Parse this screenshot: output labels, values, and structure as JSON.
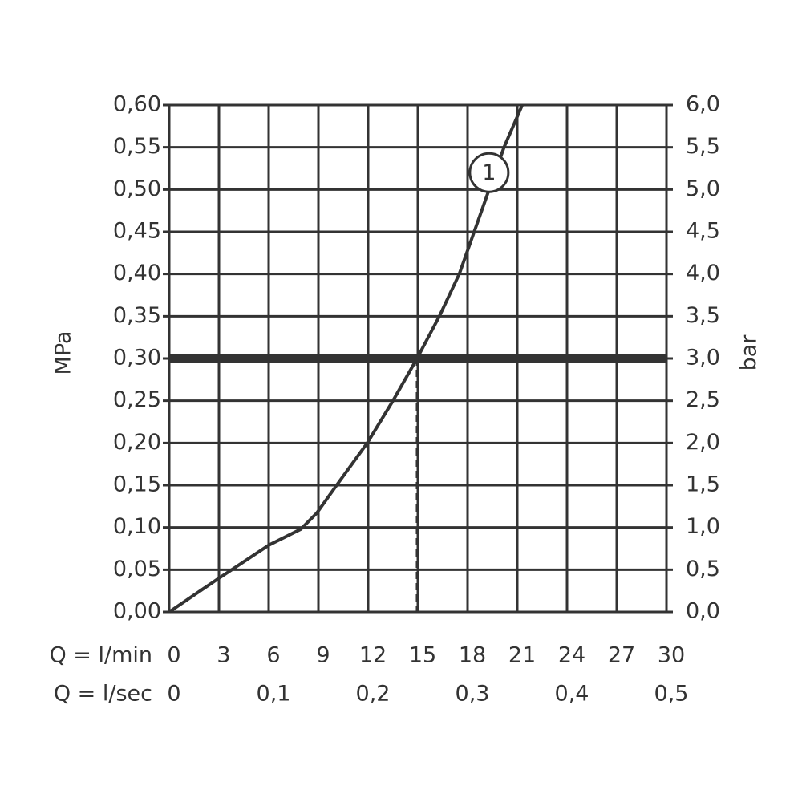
{
  "chart_data": {
    "type": "line",
    "x": [
      0,
      2.85,
      6,
      7.94,
      8.9,
      10.1,
      11.95,
      13.5,
      14.95,
      16.3,
      17.5,
      18.4,
      19.3,
      20.2,
      21.3
    ],
    "series": [
      {
        "color": "#333333",
        "values": [
          0,
          0.038,
          0.079,
          0.098,
          0.117,
          0.15,
          0.2,
          0.25,
          0.3,
          0.35,
          0.4,
          0.45,
          0.5,
          0.55,
          0.6
        ]
      }
    ],
    "xlim": [
      0,
      30
    ],
    "xticks": [
      0,
      3,
      6,
      9,
      12,
      15,
      18,
      21,
      24,
      27,
      30
    ],
    "x2lim": [
      0,
      0.5
    ],
    "x2ticks": [
      0,
      {
        "value": 0.1,
        "label": "0,1"
      },
      {
        "value": 0.2,
        "label": "0,2"
      },
      {
        "value": 0.3,
        "label": "0,3"
      },
      {
        "value": 0.4,
        "label": "0,4"
      },
      {
        "value": 0.5,
        "label": "0,5"
      }
    ],
    "ylim": [
      0,
      0.6
    ],
    "yticks": [
      {
        "value": 0,
        "label": "0,00"
      },
      {
        "value": 0.05,
        "label": "0,05"
      },
      {
        "value": 0.1,
        "label": "0,10"
      },
      {
        "value": 0.15,
        "label": "0,15"
      },
      {
        "value": 0.2,
        "label": "0,20"
      },
      {
        "value": 0.25,
        "label": "0,25"
      },
      {
        "value": 0.3,
        "label": "0,30"
      },
      {
        "value": 0.35,
        "label": "0,35"
      },
      {
        "value": 0.4,
        "label": "0,40"
      },
      {
        "value": 0.45,
        "label": "0,45"
      },
      {
        "value": 0.5,
        "label": "0,50"
      },
      {
        "value": 0.55,
        "label": "0,55"
      },
      {
        "value": 0.6,
        "label": "0,60"
      }
    ],
    "y2lim": [
      0,
      6
    ],
    "y2ticks": [
      {
        "value": 0,
        "label": "0,0"
      },
      {
        "value": 0.5,
        "label": "0,5"
      },
      {
        "value": 1,
        "label": "1,0"
      },
      {
        "value": 1.5,
        "label": "1,5"
      },
      {
        "value": 2,
        "label": "2,0"
      },
      {
        "value": 2.5,
        "label": "2,5"
      },
      {
        "value": 3,
        "label": "3,0"
      },
      {
        "value": 3.5,
        "label": "3,5"
      },
      {
        "value": 4,
        "label": "4,0"
      },
      {
        "value": 4.5,
        "label": "4,5"
      },
      {
        "value": 5,
        "label": "5,0"
      },
      {
        "value": 5.5,
        "label": "5,5"
      },
      {
        "value": 6,
        "label": "6,0"
      }
    ],
    "xlabel": "Q = l/min",
    "x2label": "Q = l/sec",
    "ylabel": "MPa",
    "y2label": "bar",
    "grid": true,
    "reference_line_y": 0.3,
    "drop_line_x": 14.95,
    "annotation": {
      "text": "1",
      "x": 19.3,
      "y": 0.52
    }
  }
}
